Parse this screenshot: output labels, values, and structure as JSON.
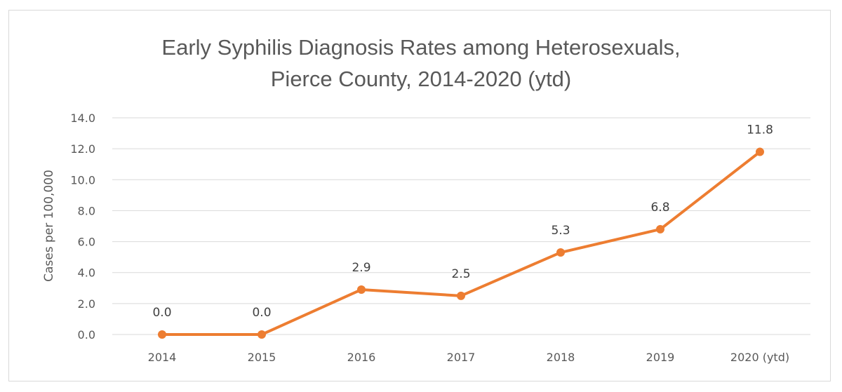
{
  "chart_data": {
    "type": "line",
    "title_lines": [
      "Early Syphilis Diagnosis Rates among Heterosexuals,",
      "Pierce County, 2014-2020 (ytd)"
    ],
    "xlabel": "",
    "ylabel": "Cases per 100,000",
    "categories": [
      "2014",
      "2015",
      "2016",
      "2017",
      "2018",
      "2019",
      "2020 (ytd)"
    ],
    "values": [
      0.0,
      0.0,
      2.9,
      2.5,
      5.3,
      6.8,
      11.8
    ],
    "data_labels": [
      "0.0",
      "0.0",
      "2.9",
      "2.5",
      "5.3",
      "6.8",
      "11.8"
    ],
    "ylim": [
      0,
      14
    ],
    "yticks": [
      "0.0",
      "2.0",
      "4.0",
      "6.0",
      "8.0",
      "10.0",
      "12.0",
      "14.0"
    ],
    "grid": true,
    "legend": "none",
    "line_color": "#ED7D31"
  }
}
